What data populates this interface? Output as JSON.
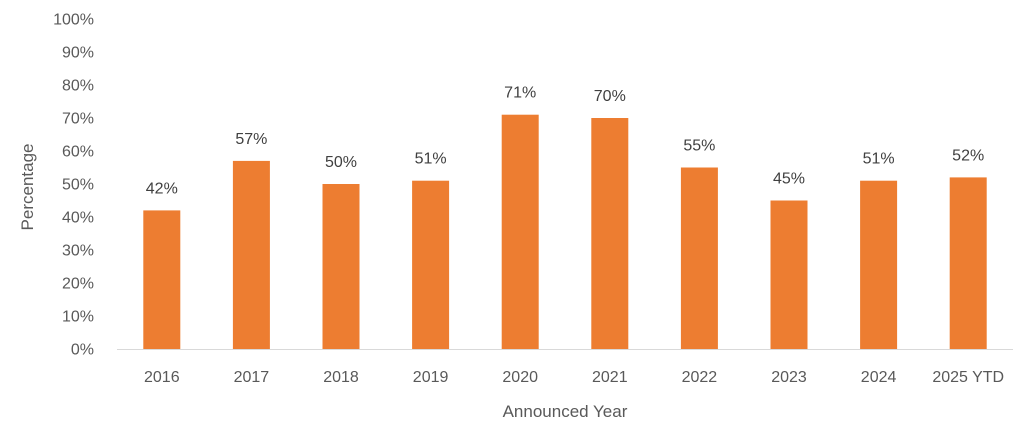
{
  "chart_data": {
    "type": "bar",
    "title": "",
    "xlabel": "Announced Year",
    "ylabel": "Percentage",
    "categories": [
      "2016",
      "2017",
      "2018",
      "2019",
      "2020",
      "2021",
      "2022",
      "2023",
      "2024",
      "2025 YTD"
    ],
    "values": [
      42,
      57,
      50,
      51,
      71,
      70,
      55,
      45,
      51,
      52
    ],
    "data_labels": [
      "42%",
      "57%",
      "50%",
      "51%",
      "71%",
      "70%",
      "55%",
      "45%",
      "51%",
      "52%"
    ],
    "ylim": [
      0,
      100
    ],
    "yticks": [
      0,
      10,
      20,
      30,
      40,
      50,
      60,
      70,
      80,
      90,
      100
    ],
    "ytick_labels": [
      "0%",
      "10%",
      "20%",
      "30%",
      "40%",
      "50%",
      "60%",
      "70%",
      "80%",
      "90%",
      "100%"
    ],
    "grid": false,
    "legend": "none",
    "bar_color": "#ED7D31",
    "axis_color": "#D9D9D9"
  }
}
